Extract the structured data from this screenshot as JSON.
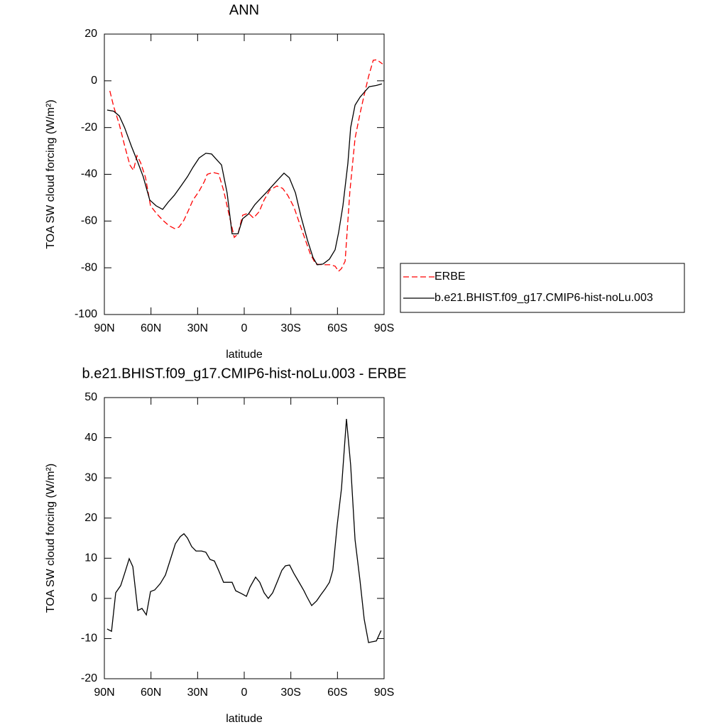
{
  "chart_data": [
    {
      "type": "line",
      "title": "ANN",
      "xlabel": "latitude",
      "ylabel": "TOA SW cloud forcing (W/m²)",
      "xlim": [
        90,
        -90
      ],
      "xticks": [
        {
          "value": 90,
          "label": "90N"
        },
        {
          "value": 60,
          "label": "60N"
        },
        {
          "value": 30,
          "label": "30N"
        },
        0,
        {
          "value": -30,
          "label": "30S"
        },
        {
          "value": -60,
          "label": "60S"
        },
        {
          "value": -90,
          "label": "90S"
        }
      ],
      "ylim": [
        -100,
        20
      ],
      "yticks": [
        -100,
        -80,
        -60,
        -40,
        -20,
        0,
        20
      ],
      "legend": "right",
      "series": [
        {
          "name": "ERBE",
          "color": "#ff0000",
          "dashed": true,
          "x": [
            86.5,
            84,
            80.4,
            77,
            73.6,
            71.3,
            69,
            66.7,
            63.5,
            60.3,
            56.7,
            52.5,
            48.4,
            44.8,
            42,
            38.8,
            36,
            33,
            29.2,
            25.6,
            23.8,
            20,
            16.5,
            13.3,
            10,
            6.4,
            4,
            1,
            -2.7,
            -6,
            -9.6,
            -12.8,
            -16.4,
            -21,
            -24.7,
            -28,
            -32,
            -35.6,
            -39.3,
            -42.5,
            -46,
            -50.7,
            -55.3,
            -58.5,
            -60.7,
            -62.6,
            -64.9,
            -68,
            -71.3,
            -74.5,
            -77.2,
            -80,
            -83,
            -85.4,
            -89
          ],
          "values": [
            -4.3,
            -11,
            -18.6,
            -27.7,
            -36,
            -38.3,
            -32,
            -35,
            -41.4,
            -53.5,
            -56.6,
            -59.6,
            -62,
            -63.2,
            -62.6,
            -59.6,
            -55.6,
            -51,
            -47.4,
            -43,
            -40,
            -39.2,
            -39.8,
            -46.8,
            -56.6,
            -67,
            -65.5,
            -57.5,
            -56.6,
            -58.7,
            -56,
            -51,
            -46.8,
            -45,
            -46,
            -49,
            -54,
            -61,
            -68,
            -74,
            -78.4,
            -78.7,
            -78.7,
            -79.3,
            -81.5,
            -80.3,
            -77.2,
            -47.4,
            -24.6,
            -14,
            -6,
            1.8,
            8.8,
            9,
            7.2
          ]
        },
        {
          "name": "b.e21.BHIST.f09_g17.CMIP6-hist-noLu.003",
          "color": "#000000",
          "dashed": false,
          "x": [
            88.2,
            84,
            80.4,
            77,
            72.6,
            69,
            65,
            60.8,
            56.7,
            52.5,
            49,
            45,
            40.7,
            36.5,
            33,
            29,
            24.7,
            21,
            17.4,
            14.6,
            11,
            7.8,
            4,
            1,
            -2.7,
            -6.8,
            -11,
            -14.6,
            -18.7,
            -22.8,
            -25.6,
            -29,
            -33,
            -36.5,
            -40.6,
            -44.3,
            -47,
            -50.7,
            -54.8,
            -58.5,
            -60.7,
            -63.5,
            -66.7,
            -68.5,
            -71.3,
            -74.5,
            -78,
            -80.4,
            -85,
            -88.6
          ],
          "values": [
            -12.5,
            -13,
            -15,
            -20,
            -28,
            -34,
            -41,
            -51,
            -53.5,
            -55,
            -52,
            -49,
            -45,
            -41,
            -37,
            -33,
            -31,
            -31.3,
            -34,
            -36,
            -48,
            -65.5,
            -65.5,
            -59,
            -57,
            -53,
            -50,
            -47.5,
            -44.5,
            -41.5,
            -39.5,
            -41.5,
            -48,
            -58,
            -68,
            -75.7,
            -78.7,
            -78.4,
            -76.3,
            -72.3,
            -65,
            -53.5,
            -35.3,
            -20,
            -10.4,
            -7,
            -4.3,
            -2.5,
            -2,
            -1.3
          ]
        }
      ]
    },
    {
      "type": "line",
      "title": "b.e21.BHIST.f09_g17.CMIP6-hist-noLu.003 - ERBE",
      "xlabel": "latitude",
      "ylabel": "TOA SW cloud forcing (W/m²)",
      "xlim": [
        90,
        -90
      ],
      "xticks": [
        {
          "value": 90,
          "label": "90N"
        },
        {
          "value": 60,
          "label": "60N"
        },
        {
          "value": 30,
          "label": "30N"
        },
        0,
        {
          "value": -30,
          "label": "30S"
        },
        {
          "value": -60,
          "label": "60S"
        },
        {
          "value": -90,
          "label": "90S"
        }
      ],
      "ylim": [
        -20,
        50
      ],
      "yticks": [
        -20,
        -10,
        0,
        10,
        20,
        30,
        40,
        50
      ],
      "series": [
        {
          "color": "#000000",
          "dashed": false,
          "x": [
            88.2,
            85.4,
            82.7,
            79.5,
            77,
            74,
            71.7,
            68.5,
            65.8,
            63,
            60.3,
            57.6,
            54,
            50.7,
            47.5,
            44.3,
            41.1,
            38.8,
            36.5,
            33.8,
            31,
            27.4,
            24.7,
            22,
            19.2,
            16.5,
            13.3,
            10,
            7.8,
            5.5,
            1.8,
            -1.4,
            -3.7,
            -7.3,
            -10,
            -12.8,
            -15.5,
            -18.3,
            -21.5,
            -24.2,
            -26.5,
            -29.2,
            -32,
            -34.7,
            -38.4,
            -40.2,
            -43.4,
            -46.6,
            -49.3,
            -52,
            -54.8,
            -57,
            -59.8,
            -62.6,
            -65.8,
            -68.5,
            -71.3,
            -74.5,
            -77.2,
            -80,
            -82.2,
            -85,
            -88.1
          ],
          "values": [
            -7.6,
            -8.2,
            1.4,
            3.2,
            6.2,
            9.9,
            7.9,
            -3,
            -2.5,
            -4.1,
            1.7,
            2.1,
            3.7,
            5.8,
            9.7,
            13.6,
            15.4,
            16.1,
            15,
            12.9,
            11.8,
            11.8,
            11.5,
            9.7,
            9.3,
            7,
            4,
            4,
            4,
            1.9,
            1.2,
            0.5,
            2.8,
            5.3,
            4,
            1.4,
            0,
            1.4,
            4.4,
            7,
            8.1,
            8.3,
            6.2,
            4.4,
            1.9,
            0.5,
            -1.8,
            -0.6,
            0.9,
            2.3,
            4,
            7,
            18.2,
            27.4,
            44.7,
            33.2,
            14.6,
            4.4,
            -5.2,
            -11,
            -10.8,
            -10.6,
            -8
          ]
        }
      ]
    }
  ]
}
